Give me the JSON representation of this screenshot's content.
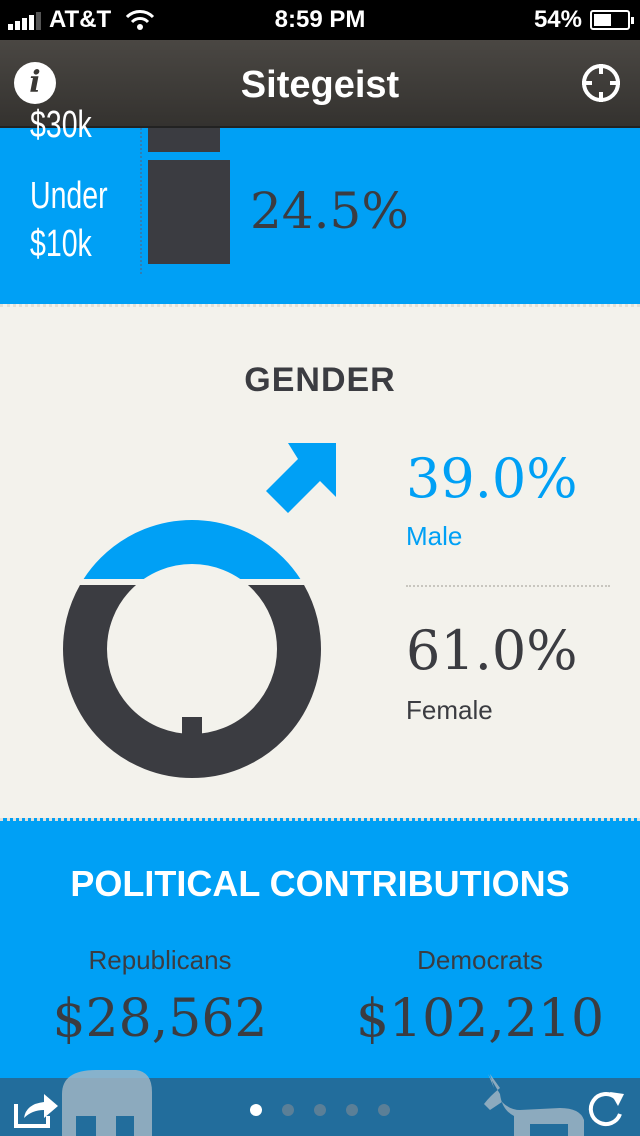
{
  "status": {
    "carrier": "AT&T",
    "time": "8:59 PM",
    "battery": "54%",
    "battery_level": 0.54
  },
  "nav": {
    "title": "Sitegeist"
  },
  "income": {
    "cut_label": "$30k",
    "label_line1": "Under",
    "label_line2": "$10k",
    "value": "24.5%"
  },
  "gender": {
    "heading": "GENDER",
    "male_pct": "39.0%",
    "male_label": "Male",
    "female_pct": "61.0%",
    "female_label": "Female",
    "colors": {
      "male": "#00a0f5",
      "female": "#3b3c41"
    }
  },
  "political": {
    "heading": "POLITICAL CONTRIBUTIONS",
    "republicans_label": "Republicans",
    "republicans_amount": "$28,562",
    "democrats_label": "Democrats",
    "democrats_amount": "$102,210"
  },
  "pager": {
    "count": 5,
    "active": 0
  },
  "colors": {
    "accent": "#00a0f5",
    "dark": "#3b3c41",
    "background": "#f3f2ec"
  }
}
